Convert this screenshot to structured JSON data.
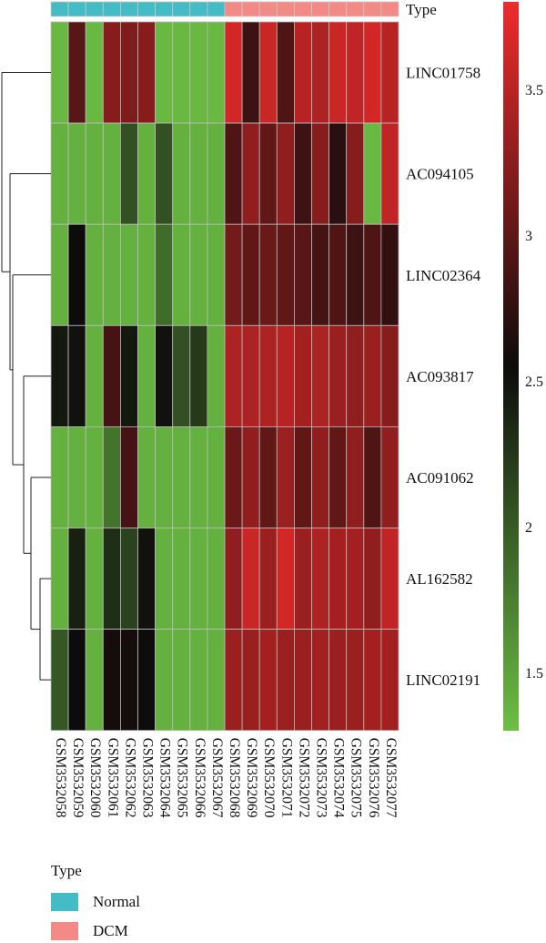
{
  "chart_data": {
    "type": "heatmap",
    "samples": [
      "GSM3532058",
      "GSM3532059",
      "GSM3532060",
      "GSM3532061",
      "GSM3532062",
      "GSM3532063",
      "GSM3532064",
      "GSM3532065",
      "GSM3532066",
      "GSM3532067",
      "GSM3532068",
      "GSM3532069",
      "GSM3532070",
      "GSM3532071",
      "GSM3532072",
      "GSM3532073",
      "GSM3532074",
      "GSM3532075",
      "GSM3532076",
      "GSM3532077"
    ],
    "genes": [
      "LINC01758",
      "AC094105",
      "LINC02364",
      "AC093817",
      "AC091062",
      "AL162582",
      "LINC02191"
    ],
    "sample_type": [
      "Normal",
      "Normal",
      "Normal",
      "Normal",
      "Normal",
      "Normal",
      "Normal",
      "Normal",
      "Normal",
      "Normal",
      "DCM",
      "DCM",
      "DCM",
      "DCM",
      "DCM",
      "DCM",
      "DCM",
      "DCM",
      "DCM",
      "DCM"
    ],
    "values": [
      [
        1.35,
        3.0,
        1.35,
        3.25,
        3.2,
        3.25,
        1.35,
        1.35,
        1.35,
        1.35,
        3.65,
        2.85,
        3.6,
        2.95,
        3.5,
        3.45,
        3.6,
        3.55,
        3.65,
        3.5
      ],
      [
        1.4,
        1.4,
        1.4,
        1.4,
        2.1,
        1.4,
        2.1,
        1.4,
        1.4,
        1.4,
        2.95,
        3.3,
        3.05,
        3.3,
        2.85,
        3.25,
        2.75,
        3.25,
        1.35,
        3.55
      ],
      [
        1.4,
        2.6,
        1.4,
        1.4,
        1.4,
        1.4,
        1.9,
        1.4,
        1.4,
        1.4,
        3.15,
        3.05,
        3.1,
        3.05,
        3.0,
        2.9,
        2.95,
        2.85,
        2.95,
        2.8
      ],
      [
        2.5,
        2.55,
        1.4,
        2.9,
        2.5,
        1.4,
        2.55,
        2.1,
        2.25,
        1.4,
        3.45,
        3.45,
        3.45,
        3.5,
        3.4,
        3.45,
        3.35,
        3.3,
        3.35,
        3.25
      ],
      [
        1.4,
        1.4,
        1.4,
        1.85,
        2.9,
        1.4,
        1.4,
        1.4,
        1.4,
        1.4,
        3.1,
        3.3,
        3.05,
        3.35,
        3.05,
        3.3,
        3.05,
        3.3,
        2.95,
        3.3
      ],
      [
        1.4,
        2.45,
        1.4,
        2.35,
        2.2,
        2.55,
        1.4,
        1.4,
        1.4,
        1.4,
        3.3,
        3.6,
        3.35,
        3.65,
        3.35,
        3.45,
        3.4,
        3.4,
        3.3,
        3.55
      ],
      [
        2.05,
        2.6,
        1.4,
        2.65,
        2.65,
        2.6,
        1.4,
        1.4,
        1.4,
        1.4,
        3.35,
        3.35,
        3.4,
        3.35,
        3.35,
        3.4,
        3.35,
        3.35,
        3.4,
        3.4
      ]
    ],
    "annotation_title": "Type",
    "type_colors": {
      "Normal": "#44bcc6",
      "DCM": "#f28a86"
    },
    "colorscale": {
      "low": "#6cbf44",
      "mid": "#0d0b0b",
      "high": "#ef2b2b",
      "min": 1.3,
      "mid_value": 2.6,
      "max": 3.8
    },
    "colorbar_ticks": [
      "1.5",
      "2",
      "2.5",
      "3",
      "3.5"
    ],
    "legend": {
      "title": "Type",
      "entries": [
        {
          "label": "Normal",
          "color": "#44bcc6"
        },
        {
          "label": "DCM",
          "color": "#f28a86"
        }
      ]
    }
  }
}
